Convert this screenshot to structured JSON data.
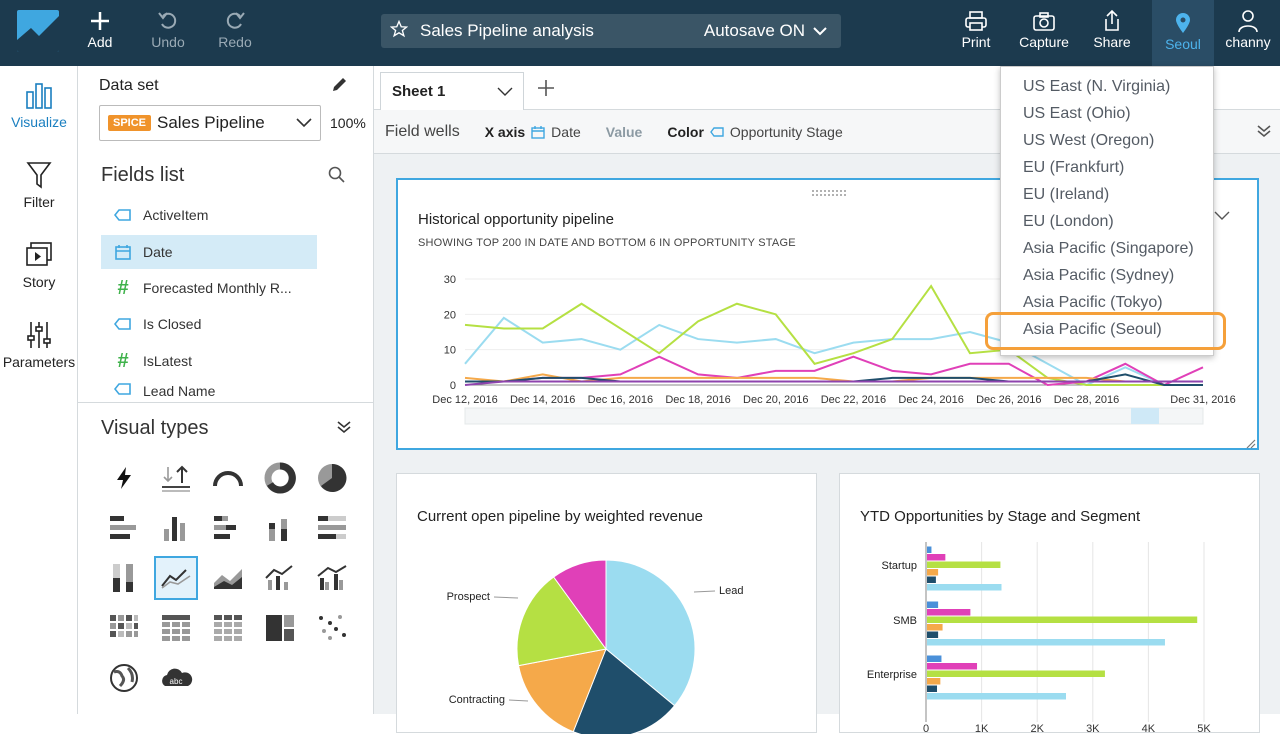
{
  "topbar": {
    "add": "Add",
    "undo": "Undo",
    "redo": "Redo",
    "analysis_title": "Sales Pipeline analysis",
    "autosave": "Autosave ON",
    "print": "Print",
    "capture": "Capture",
    "share": "Share",
    "region": "Seoul",
    "user": "channy"
  },
  "leftnav": {
    "visualize": "Visualize",
    "filter": "Filter",
    "story": "Story",
    "parameters": "Parameters"
  },
  "dataset": {
    "label": "Data set",
    "badge": "SPICE",
    "name": "Sales Pipeline",
    "percent": "100%"
  },
  "fields": {
    "title": "Fields list",
    "items": [
      {
        "label": "ActiveItem",
        "type": "dimension"
      },
      {
        "label": "Date",
        "type": "date"
      },
      {
        "label": "Forecasted Monthly R...",
        "type": "measure"
      },
      {
        "label": "Is Closed",
        "type": "dimension"
      },
      {
        "label": "IsLatest",
        "type": "measure"
      },
      {
        "label": "Lead Name",
        "type": "dimension"
      }
    ]
  },
  "visual_types": {
    "title": "Visual types"
  },
  "sheet": {
    "tab": "Sheet 1"
  },
  "wells": {
    "label": "Field wells",
    "x_axis": "X axis",
    "x_value": "Date",
    "value": "Value",
    "color": "Color",
    "color_value": "Opportunity Stage"
  },
  "cards": {
    "historical": {
      "title": "Historical opportunity pipeline",
      "subtitle": "SHOWING TOP 200 IN DATE AND BOTTOM 6 IN OPPORTUNITY STAGE"
    },
    "pie": {
      "title": "Current open pipeline by weighted revenue"
    },
    "ytd": {
      "title": "YTD Opportunities by Stage and Segment"
    }
  },
  "region_menu": {
    "items": [
      "US East (N. Virginia)",
      "US East (Ohio)",
      "US West (Oregon)",
      "EU (Frankfurt)",
      "EU (Ireland)",
      "EU (London)",
      "Asia Pacific (Singapore)",
      "Asia Pacific (Sydney)",
      "Asia Pacific (Tokyo)",
      "Asia Pacific (Seoul)"
    ],
    "highlighted": "Asia Pacific (Seoul)"
  },
  "colors": {
    "topbar": "#1c3a4e",
    "accent": "#3fa7e0",
    "highlight": "#f5a03a",
    "series": [
      "#9bdcf0",
      "#b5e043",
      "#e040b8",
      "#f5a94a",
      "#1f4e6b",
      "#8e44ad"
    ]
  },
  "chart_data": [
    {
      "type": "line",
      "x": [
        "Dec 12, 2016",
        "Dec 13, 2016",
        "Dec 14, 2016",
        "Dec 15, 2016",
        "Dec 16, 2016",
        "Dec 17, 2016",
        "Dec 18, 2016",
        "Dec 19, 2016",
        "Dec 20, 2016",
        "Dec 21, 2016",
        "Dec 22, 2016",
        "Dec 23, 2016",
        "Dec 24, 2016",
        "Dec 25, 2016",
        "Dec 26, 2016",
        "Dec 27, 2016",
        "Dec 28, 2016",
        "Dec 29, 2016",
        "Dec 30, 2016",
        "Dec 31, 2016"
      ],
      "x_ticks": [
        "Dec 12, 2016",
        "Dec 14, 2016",
        "Dec 16, 2016",
        "Dec 18, 2016",
        "Dec 20, 2016",
        "Dec 22, 2016",
        "Dec 24, 2016",
        "Dec 26, 2016",
        "Dec 28, 2016",
        "Dec 31, 2016"
      ],
      "y_ticks": [
        0,
        10,
        20,
        30
      ],
      "ylim": [
        0,
        30
      ],
      "series": [
        {
          "values": [
            6,
            19,
            12,
            13,
            10,
            17,
            13,
            12,
            13,
            9,
            12,
            13,
            13,
            15,
            12,
            6,
            0,
            5,
            0,
            0
          ]
        },
        {
          "values": [
            17,
            16,
            16,
            23,
            16,
            9,
            18,
            23,
            20,
            6,
            9,
            13,
            28,
            9,
            10,
            2,
            0,
            0,
            0,
            0
          ]
        },
        {
          "values": [
            1,
            1,
            2,
            2,
            3,
            8,
            3,
            2,
            4,
            4,
            8,
            4,
            3,
            6,
            6,
            0,
            1,
            6,
            0,
            5
          ]
        },
        {
          "values": [
            2,
            1,
            3,
            1,
            2,
            2,
            2,
            2,
            2,
            2,
            1,
            1,
            2,
            2,
            2,
            2,
            2,
            1,
            1,
            1
          ]
        },
        {
          "values": [
            1,
            1,
            2,
            2,
            1,
            1,
            1,
            1,
            1,
            1,
            1,
            2,
            2,
            2,
            1,
            1,
            1,
            3,
            0,
            0
          ]
        },
        {
          "values": [
            0,
            1,
            1,
            1,
            1,
            1,
            1,
            1,
            1,
            1,
            1,
            1,
            1,
            1,
            1,
            1,
            1,
            1,
            1,
            1
          ]
        }
      ]
    },
    {
      "type": "pie",
      "labels": [
        "Lead",
        "Contracting",
        "Prospect"
      ],
      "slices": [
        {
          "label": "Lead",
          "value": 36
        },
        {
          "label": "",
          "value": 20
        },
        {
          "label": "Contracting",
          "value": 16
        },
        {
          "label": "Prospect",
          "value": 18
        },
        {
          "label": "",
          "value": 10
        }
      ]
    },
    {
      "type": "bar",
      "orientation": "horizontal",
      "categories": [
        "Startup",
        "SMB",
        "Enterprise"
      ],
      "x_ticks": [
        "0",
        "1K",
        "2K",
        "3K",
        "4K",
        "5K"
      ],
      "xlim": [
        0,
        5000
      ],
      "series": [
        {
          "values": [
            80,
            200,
            260
          ]
        },
        {
          "values": [
            330,
            780,
            900
          ]
        },
        {
          "values": [
            1320,
            4860,
            3200
          ]
        },
        {
          "values": [
            200,
            280,
            240
          ]
        },
        {
          "values": [
            160,
            200,
            180
          ]
        },
        {
          "values": [
            1340,
            4280,
            2500
          ]
        }
      ]
    }
  ]
}
